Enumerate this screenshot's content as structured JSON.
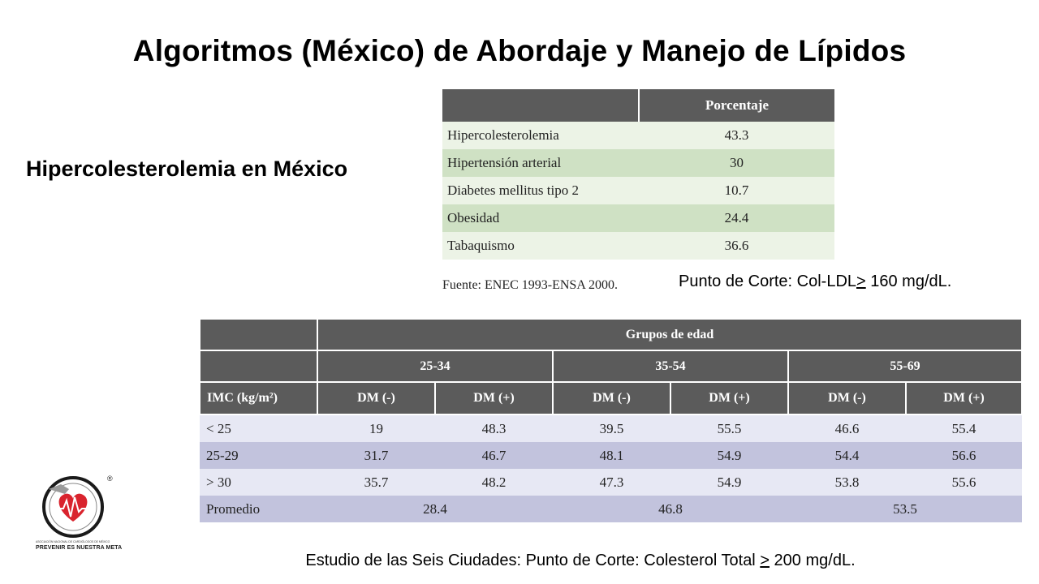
{
  "title": "Algoritmos (México) de Abordaje y Manejo de Lípidos",
  "subtitle": "Hipercolesterolemia en México",
  "prevalence_table": {
    "header": "Porcentaje",
    "rows": [
      {
        "label": "Hipercolesterolemia",
        "value": "43.3"
      },
      {
        "label": "Hipertensión arterial",
        "value": "30"
      },
      {
        "label": "Diabetes mellitus tipo 2",
        "value": "10.7"
      },
      {
        "label": "Obesidad",
        "value": "24.4"
      },
      {
        "label": "Tabaquismo",
        "value": "36.6"
      }
    ]
  },
  "source": "Fuente: ENEC 1993-ENSA 2000.",
  "cutoff_ldl": {
    "prefix": "Punto de Corte: Col-LDL",
    "sign": ">",
    "suffix": " 160 mg/dL."
  },
  "age_table": {
    "group_header": "Grupos de edad",
    "age_groups": [
      "25-34",
      "35-54",
      "55-69"
    ],
    "imc_header": "IMC (kg/m²)",
    "dm_neg": "DM (-)",
    "dm_pos": "DM (+)",
    "rows": [
      {
        "label": "< 25",
        "values": [
          "19",
          "48.3",
          "39.5",
          "55.5",
          "46.6",
          "55.4"
        ]
      },
      {
        "label": "25-29",
        "values": [
          "31.7",
          "46.7",
          "48.1",
          "54.9",
          "54.4",
          "56.6"
        ]
      },
      {
        "label": "> 30",
        "values": [
          "35.7",
          "48.2",
          "47.3",
          "54.9",
          "53.8",
          "55.6"
        ]
      }
    ],
    "average": {
      "label": "Promedio",
      "values": [
        "28.4",
        "46.8",
        "53.5"
      ]
    }
  },
  "cutoff_total": {
    "prefix": "Estudio de las Seis Ciudades: Punto de Corte: Colesterol Total ",
    "sign": ">",
    "suffix": " 200 mg/dL."
  },
  "logo": {
    "motto": "PREVENIR ES NUESTRA META",
    "ring_text": "ASOCIACIÓN NACIONAL DE CARDIÓLOGOS DE MÉXICO",
    "registered": "®"
  }
}
